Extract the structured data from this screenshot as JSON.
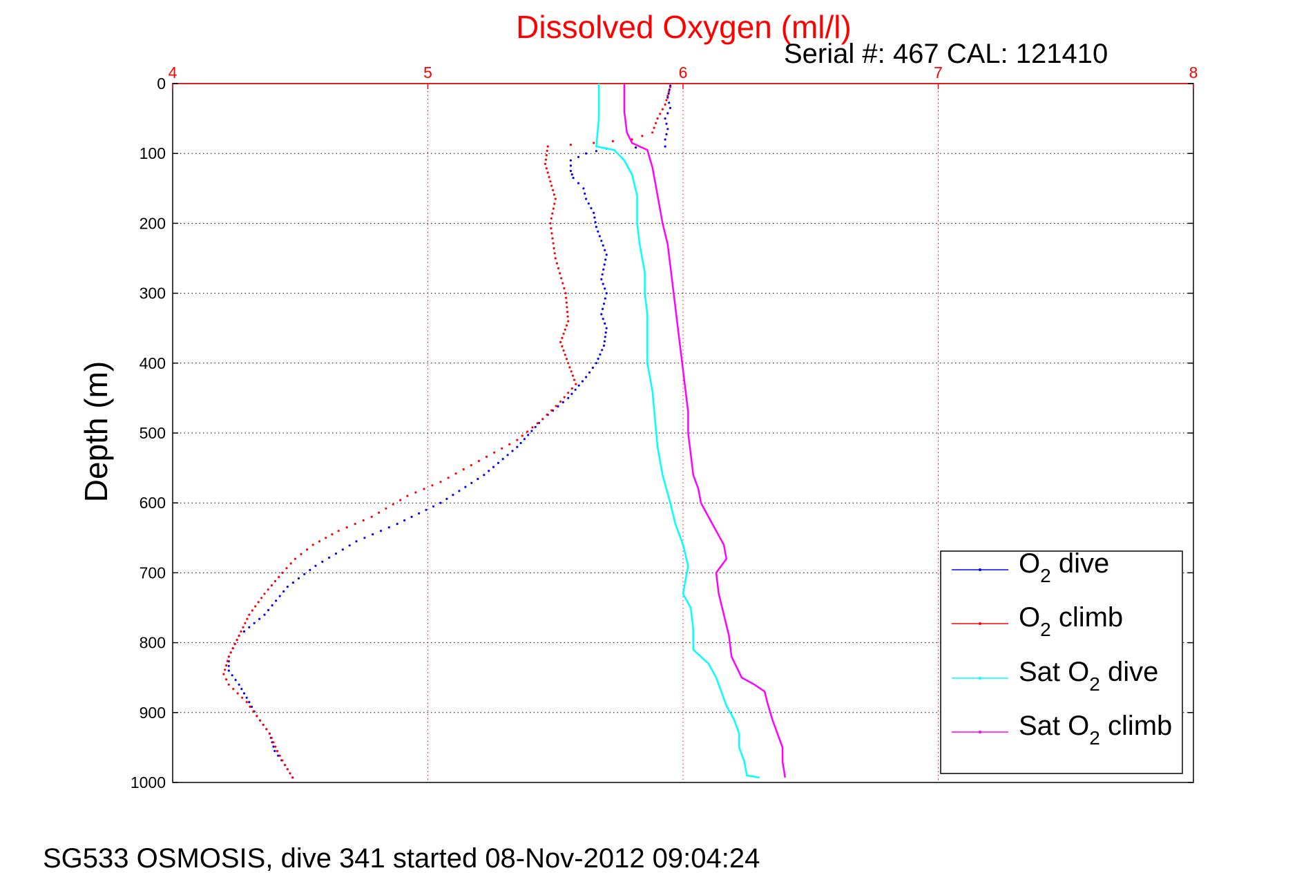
{
  "chart_data": {
    "type": "scatter",
    "title": "Dissolved Oxygen (ml/l)",
    "subtitle": "Serial #: 467  CAL: 121410",
    "footer": "SG533 OSMOSIS, dive 341 started 08-Nov-2012 09:04:24",
    "xlabel": "",
    "ylabel": "Depth (m)",
    "xlim": [
      4,
      8
    ],
    "ylim": [
      0,
      1000
    ],
    "y_reversed": true,
    "x_axis_position": "top",
    "x_ticks": [
      4,
      5,
      6,
      7,
      8
    ],
    "y_ticks": [
      0,
      100,
      200,
      300,
      400,
      500,
      600,
      700,
      800,
      900,
      1000
    ],
    "grid": true,
    "legend_position": "bottom-right",
    "colors": {
      "title": "#ff0000",
      "x_ticks": "#ff0000",
      "grid_x": "#ff0000",
      "grid_y": "#000000"
    },
    "series": [
      {
        "name": "O",
        "name_sub": "2",
        "name_suffix": " dive",
        "color": "#0000ff",
        "style": "dots",
        "points": [
          [
            5.95,
            3
          ],
          [
            5.94,
            20
          ],
          [
            5.95,
            35
          ],
          [
            5.93,
            50
          ],
          [
            5.94,
            65
          ],
          [
            5.93,
            80
          ],
          [
            5.93,
            90
          ],
          [
            5.7,
            93
          ],
          [
            5.62,
            100
          ],
          [
            5.56,
            110
          ],
          [
            5.56,
            125
          ],
          [
            5.57,
            135
          ],
          [
            5.61,
            150
          ],
          [
            5.62,
            165
          ],
          [
            5.65,
            185
          ],
          [
            5.66,
            205
          ],
          [
            5.7,
            245
          ],
          [
            5.68,
            280
          ],
          [
            5.7,
            300
          ],
          [
            5.68,
            330
          ],
          [
            5.7,
            350
          ],
          [
            5.69,
            375
          ],
          [
            5.66,
            400
          ],
          [
            5.62,
            420
          ],
          [
            5.55,
            450
          ],
          [
            5.45,
            480
          ],
          [
            5.35,
            520
          ],
          [
            5.22,
            560
          ],
          [
            5.05,
            600
          ],
          [
            4.88,
            630
          ],
          [
            4.72,
            655
          ],
          [
            4.56,
            690
          ],
          [
            4.45,
            720
          ],
          [
            4.36,
            760
          ],
          [
            4.26,
            790
          ],
          [
            4.22,
            820
          ],
          [
            4.22,
            840
          ],
          [
            4.26,
            860
          ],
          [
            4.3,
            885
          ],
          [
            4.33,
            905
          ],
          [
            4.38,
            930
          ],
          [
            4.4,
            955
          ],
          [
            4.44,
            975
          ],
          [
            4.47,
            993
          ]
        ]
      },
      {
        "name": "O",
        "name_sub": "2",
        "name_suffix": " climb",
        "color": "#ff0000",
        "style": "dots",
        "points": [
          [
            4.47,
            993
          ],
          [
            4.44,
            975
          ],
          [
            4.41,
            955
          ],
          [
            4.38,
            930
          ],
          [
            4.33,
            905
          ],
          [
            4.29,
            885
          ],
          [
            4.22,
            860
          ],
          [
            4.2,
            845
          ],
          [
            4.22,
            820
          ],
          [
            4.26,
            790
          ],
          [
            4.3,
            760
          ],
          [
            4.36,
            730
          ],
          [
            4.43,
            700
          ],
          [
            4.48,
            680
          ],
          [
            4.55,
            660
          ],
          [
            4.65,
            640
          ],
          [
            4.78,
            620
          ],
          [
            4.92,
            590
          ],
          [
            5.05,
            570
          ],
          [
            5.2,
            540
          ],
          [
            5.35,
            510
          ],
          [
            5.45,
            480
          ],
          [
            5.52,
            455
          ],
          [
            5.58,
            430
          ],
          [
            5.55,
            400
          ],
          [
            5.52,
            370
          ],
          [
            5.55,
            340
          ],
          [
            5.54,
            300
          ],
          [
            5.5,
            250
          ],
          [
            5.48,
            200
          ],
          [
            5.5,
            165
          ],
          [
            5.48,
            140
          ],
          [
            5.46,
            115
          ],
          [
            5.47,
            90
          ],
          [
            5.65,
            85
          ],
          [
            5.8,
            80
          ],
          [
            5.88,
            70
          ],
          [
            5.9,
            50
          ],
          [
            5.93,
            30
          ],
          [
            5.95,
            5
          ]
        ]
      },
      {
        "name": "Sat O",
        "name_sub": "2",
        "name_suffix": " dive",
        "color": "#00ffff",
        "style": "line",
        "points": [
          [
            5.67,
            0
          ],
          [
            5.67,
            50
          ],
          [
            5.66,
            90
          ],
          [
            5.73,
            95
          ],
          [
            5.77,
            110
          ],
          [
            5.8,
            130
          ],
          [
            5.82,
            160
          ],
          [
            5.82,
            200
          ],
          [
            5.83,
            230
          ],
          [
            5.85,
            270
          ],
          [
            5.85,
            300
          ],
          [
            5.86,
            330
          ],
          [
            5.86,
            360
          ],
          [
            5.86,
            400
          ],
          [
            5.88,
            440
          ],
          [
            5.89,
            480
          ],
          [
            5.9,
            520
          ],
          [
            5.92,
            560
          ],
          [
            5.95,
            600
          ],
          [
            5.97,
            630
          ],
          [
            6.0,
            660
          ],
          [
            6.02,
            690
          ],
          [
            6.01,
            710
          ],
          [
            6.0,
            730
          ],
          [
            6.03,
            750
          ],
          [
            6.04,
            780
          ],
          [
            6.04,
            810
          ],
          [
            6.1,
            830
          ],
          [
            6.13,
            850
          ],
          [
            6.15,
            870
          ],
          [
            6.17,
            890
          ],
          [
            6.2,
            910
          ],
          [
            6.22,
            930
          ],
          [
            6.22,
            950
          ],
          [
            6.24,
            970
          ],
          [
            6.25,
            990
          ],
          [
            6.3,
            993
          ]
        ]
      },
      {
        "name": "Sat O",
        "name_sub": "2",
        "name_suffix": " climb",
        "color": "#ff00ff",
        "style": "line",
        "points": [
          [
            6.4,
            993
          ],
          [
            6.39,
            970
          ],
          [
            6.39,
            950
          ],
          [
            6.37,
            930
          ],
          [
            6.35,
            910
          ],
          [
            6.33,
            885
          ],
          [
            6.32,
            870
          ],
          [
            6.28,
            860
          ],
          [
            6.23,
            850
          ],
          [
            6.19,
            820
          ],
          [
            6.18,
            790
          ],
          [
            6.16,
            760
          ],
          [
            6.14,
            730
          ],
          [
            6.13,
            700
          ],
          [
            6.17,
            680
          ],
          [
            6.16,
            660
          ],
          [
            6.13,
            640
          ],
          [
            6.1,
            620
          ],
          [
            6.07,
            600
          ],
          [
            6.06,
            580
          ],
          [
            6.04,
            560
          ],
          [
            6.03,
            530
          ],
          [
            6.02,
            500
          ],
          [
            6.02,
            470
          ],
          [
            6.01,
            440
          ],
          [
            6.0,
            410
          ],
          [
            5.99,
            380
          ],
          [
            5.98,
            350
          ],
          [
            5.97,
            320
          ],
          [
            5.96,
            290
          ],
          [
            5.95,
            260
          ],
          [
            5.94,
            230
          ],
          [
            5.92,
            200
          ],
          [
            5.9,
            160
          ],
          [
            5.88,
            120
          ],
          [
            5.86,
            95
          ],
          [
            5.8,
            85
          ],
          [
            5.78,
            70
          ],
          [
            5.77,
            40
          ],
          [
            5.77,
            0
          ]
        ]
      }
    ]
  }
}
